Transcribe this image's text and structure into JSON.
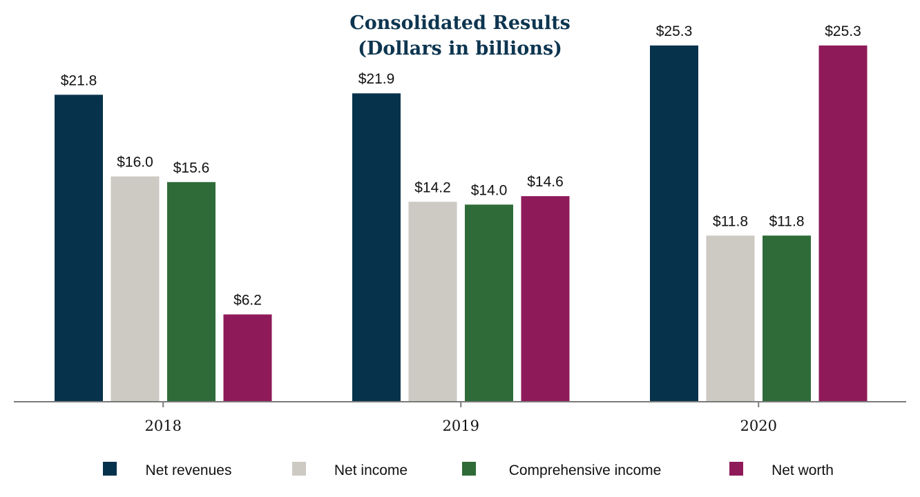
{
  "chart_data": {
    "type": "bar",
    "title": "Consolidated Results",
    "subtitle": "(Dollars in billions)",
    "categories": [
      "2018",
      "2019",
      "2020"
    ],
    "series": [
      {
        "name": "Net revenues",
        "color": "#07324c",
        "values": [
          21.8,
          21.9,
          25.3
        ],
        "labels": [
          "$21.8",
          "$21.9",
          "$25.3"
        ]
      },
      {
        "name": "Net income",
        "color": "#cdc9c3",
        "values": [
          16.0,
          14.2,
          11.8
        ],
        "labels": [
          "$16.0",
          "$14.2",
          "$11.8"
        ]
      },
      {
        "name": "Comprehensive income",
        "color": "#2e6b38",
        "values": [
          15.6,
          14.0,
          11.8
        ],
        "labels": [
          "$15.6",
          "$14.0",
          "$11.8"
        ]
      },
      {
        "name": "Net worth",
        "color": "#8f1a59",
        "values": [
          6.2,
          14.6,
          25.3
        ],
        "labels": [
          "$6.2",
          "$14.6",
          "$25.3"
        ]
      }
    ],
    "ylim": [
      0,
      27.5
    ],
    "grid": false,
    "legend_position": "bottom"
  }
}
